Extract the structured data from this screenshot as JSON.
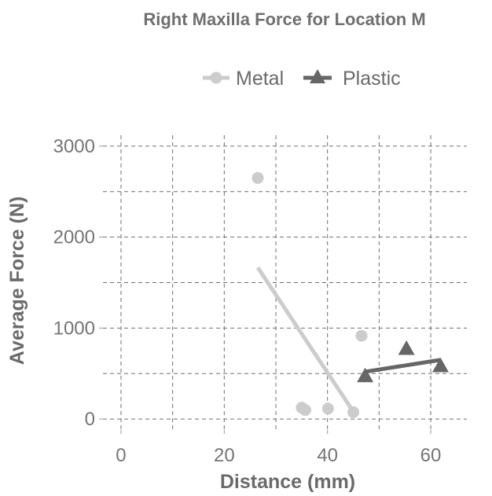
{
  "chart_data": {
    "type": "scatter",
    "title": "Right Maxilla Force for Location M",
    "xlabel": "Distance (mm)",
    "ylabel": "Average Force (N)",
    "xlim": [
      -3.5,
      67
    ],
    "ylim": [
      -120,
      3120
    ],
    "x_ticks": [
      0,
      20,
      40,
      60
    ],
    "x_tick_labels": [
      "0",
      "20",
      "40",
      "60"
    ],
    "y_ticks": [
      0,
      1000,
      2000,
      3000
    ],
    "y_tick_labels": [
      "0",
      "1000",
      "2000",
      "3000"
    ],
    "legend_position": "top",
    "grid": true,
    "series": [
      {
        "name": "Metal",
        "marker": "circle",
        "color": "#cccccc",
        "points": [
          {
            "x": 26.5,
            "y": 2650
          },
          {
            "x": 35.0,
            "y": 125
          },
          {
            "x": 35.7,
            "y": 100
          },
          {
            "x": 40.1,
            "y": 115
          },
          {
            "x": 45.0,
            "y": 75
          },
          {
            "x": 46.6,
            "y": 915
          }
        ],
        "fit": {
          "x0": 26.5,
          "y0": 1665,
          "x1": 45.2,
          "y1": 65
        }
      },
      {
        "name": "Plastic",
        "marker": "triangle",
        "color": "#666666",
        "points": [
          {
            "x": 47.3,
            "y": 470
          },
          {
            "x": 55.3,
            "y": 770
          },
          {
            "x": 61.9,
            "y": 580
          }
        ],
        "fit": {
          "x0": 47.3,
          "y0": 520,
          "x1": 61.9,
          "y1": 650
        }
      }
    ]
  }
}
